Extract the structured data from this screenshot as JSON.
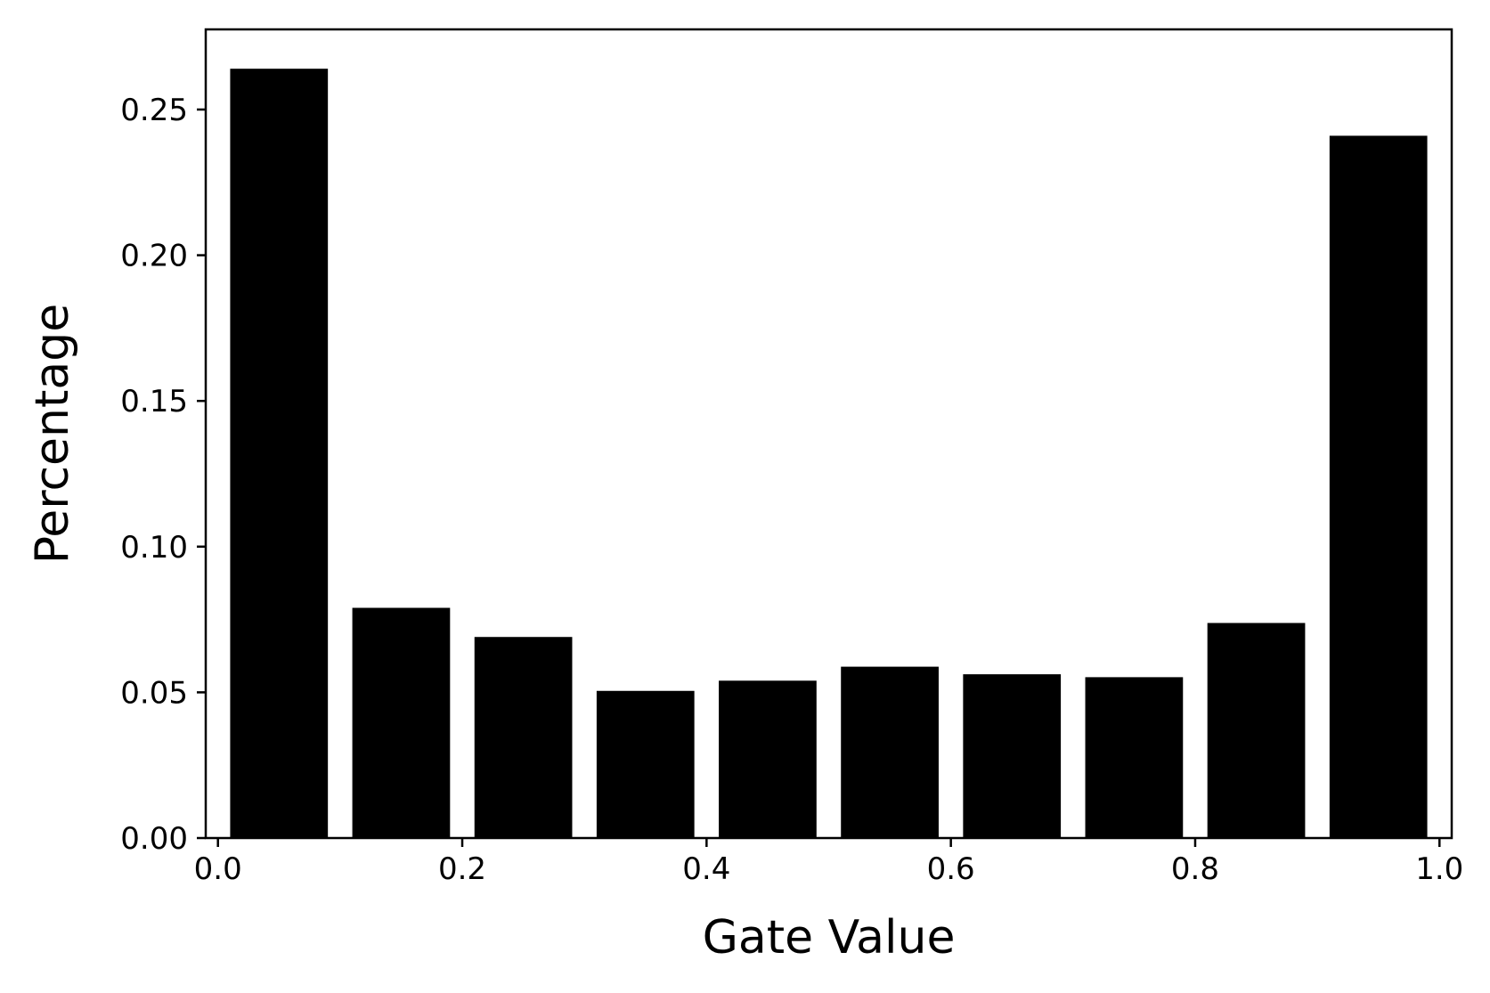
{
  "chart_data": {
    "type": "bar",
    "title": "",
    "xlabel": "Gate Value",
    "ylabel": "Percentage",
    "x": [
      0.05,
      0.15,
      0.25,
      0.35,
      0.45,
      0.55,
      0.65,
      0.75,
      0.85,
      0.95
    ],
    "values": [
      0.264,
      0.079,
      0.069,
      0.0505,
      0.054,
      0.0588,
      0.0562,
      0.0552,
      0.0738,
      0.241
    ],
    "bar_width": 0.08,
    "xlim": [
      -0.01,
      1.01
    ],
    "ylim": [
      0,
      0.2775
    ],
    "xticks": [
      0.0,
      0.2,
      0.4,
      0.6,
      0.8,
      1.0
    ],
    "xtick_labels": [
      "0.0",
      "0.2",
      "0.4",
      "0.6",
      "0.8",
      "1.0"
    ],
    "yticks": [
      0.0,
      0.05,
      0.1,
      0.15,
      0.2,
      0.25
    ],
    "ytick_labels": [
      "0.00",
      "0.05",
      "0.10",
      "0.15",
      "0.20",
      "0.25"
    ],
    "bar_color": "#000000",
    "grid": false,
    "legend": "none"
  }
}
